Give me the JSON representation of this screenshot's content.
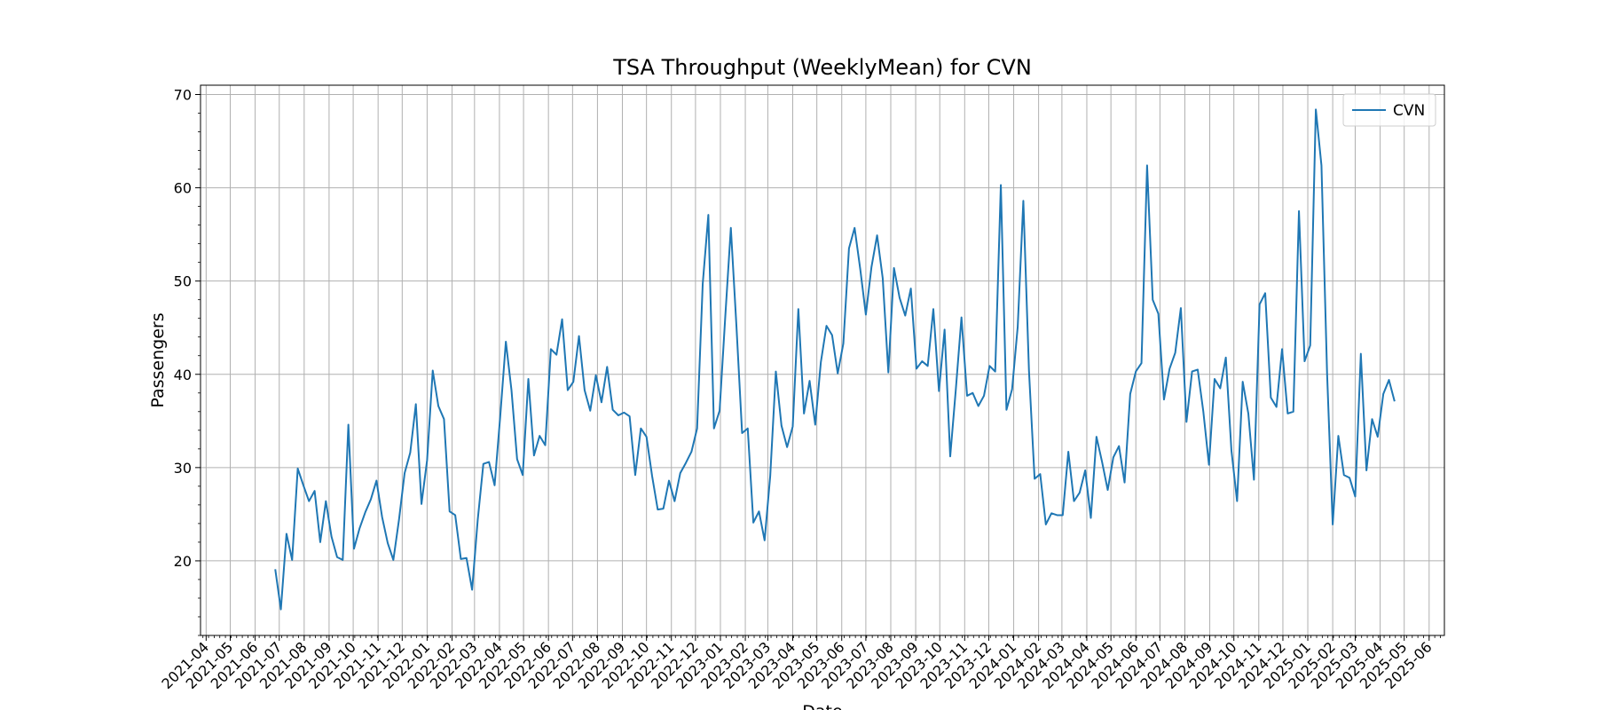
{
  "chart_data": {
    "type": "line",
    "title": "TSA Throughput (WeeklyMean) for CVN",
    "xlabel": "Date",
    "ylabel": "Passengers",
    "x_axis_type": "date",
    "xlim": [
      "2021-03-25",
      "2025-06-20"
    ],
    "ylim": [
      12,
      71
    ],
    "yticks": [
      20,
      30,
      40,
      50,
      60,
      70
    ],
    "xticks": [
      "2021-04",
      "2021-05",
      "2021-06",
      "2021-07",
      "2021-08",
      "2021-09",
      "2021-10",
      "2021-11",
      "2021-12",
      "2022-01",
      "2022-02",
      "2022-03",
      "2022-04",
      "2022-05",
      "2022-06",
      "2022-07",
      "2022-08",
      "2022-09",
      "2022-10",
      "2022-11",
      "2022-12",
      "2023-01",
      "2023-02",
      "2023-03",
      "2023-04",
      "2023-05",
      "2023-06",
      "2023-07",
      "2023-08",
      "2023-09",
      "2023-10",
      "2023-11",
      "2023-12",
      "2024-01",
      "2024-02",
      "2024-03",
      "2024-04",
      "2024-05",
      "2024-06",
      "2024-07",
      "2024-08",
      "2024-09",
      "2024-10",
      "2024-11",
      "2024-12",
      "2025-01",
      "2025-02",
      "2025-03",
      "2025-04",
      "2025-05",
      "2025-06"
    ],
    "grid": true,
    "legend_position": "top-right",
    "series": [
      {
        "name": "CVN",
        "color": "#1f77b4",
        "x_start": "2021-06-26",
        "x_step_days": 7,
        "values": [
          19.1,
          14.8,
          22.9,
          20.1,
          29.9,
          28.1,
          26.4,
          27.5,
          22.0,
          26.4,
          22.6,
          20.4,
          20.1,
          34.6,
          21.3,
          23.5,
          25.2,
          26.6,
          28.6,
          24.7,
          21.9,
          20.1,
          24.4,
          29.4,
          31.6,
          36.8,
          26.1,
          30.8,
          40.4,
          36.6,
          35.2,
          25.3,
          24.9,
          20.2,
          20.3,
          16.9,
          24.4,
          30.4,
          30.6,
          28.1,
          35.5,
          43.5,
          38.3,
          30.9,
          29.2,
          39.5,
          31.3,
          33.4,
          32.4,
          42.7,
          42.1,
          45.9,
          38.3,
          39.2,
          44.1,
          38.3,
          36.1,
          39.9,
          37.0,
          40.8,
          36.2,
          35.6,
          35.9,
          35.5,
          29.2,
          34.2,
          33.3,
          29.1,
          25.5,
          25.6,
          28.6,
          26.4,
          29.4,
          30.5,
          31.7,
          34.2,
          49.7,
          57.1,
          34.2,
          36.1,
          46.1,
          55.7,
          45.1,
          33.7,
          34.2,
          24.1,
          25.3,
          22.2,
          29.1,
          40.3,
          34.5,
          32.2,
          34.4,
          47.0,
          35.8,
          39.3,
          34.6,
          41.3,
          45.2,
          44.2,
          40.1,
          43.3,
          53.5,
          55.7,
          51.3,
          46.4,
          51.5,
          54.9,
          50.3,
          40.2,
          51.4,
          48.2,
          46.3,
          49.2,
          40.6,
          41.4,
          40.9,
          47.0,
          38.2,
          44.8,
          31.2,
          38.4,
          46.1,
          37.7,
          38.0,
          36.6,
          37.7,
          40.9,
          40.3,
          60.3,
          36.2,
          38.4,
          45.1,
          58.6,
          40.4,
          28.8,
          29.3,
          23.9,
          25.1,
          24.9,
          24.9,
          31.7,
          26.4,
          27.3,
          29.7,
          24.6,
          33.3,
          30.6,
          27.6,
          31.1,
          32.3,
          28.4,
          37.9,
          40.3,
          41.2,
          62.4,
          48.0,
          46.5,
          37.3,
          40.6,
          42.3,
          47.1,
          34.9,
          40.3,
          40.5,
          36.0,
          30.3,
          39.5,
          38.5,
          41.8,
          31.8,
          26.4,
          39.2,
          35.8,
          28.7,
          47.5,
          48.7,
          37.5,
          36.5,
          42.7,
          35.8,
          36.0,
          57.5,
          41.4,
          43.1,
          68.4,
          62.4,
          40.1,
          23.9,
          33.4,
          29.2,
          28.9,
          26.9,
          42.2,
          29.7,
          35.2,
          33.3,
          37.9,
          39.4,
          37.1
        ]
      }
    ]
  }
}
